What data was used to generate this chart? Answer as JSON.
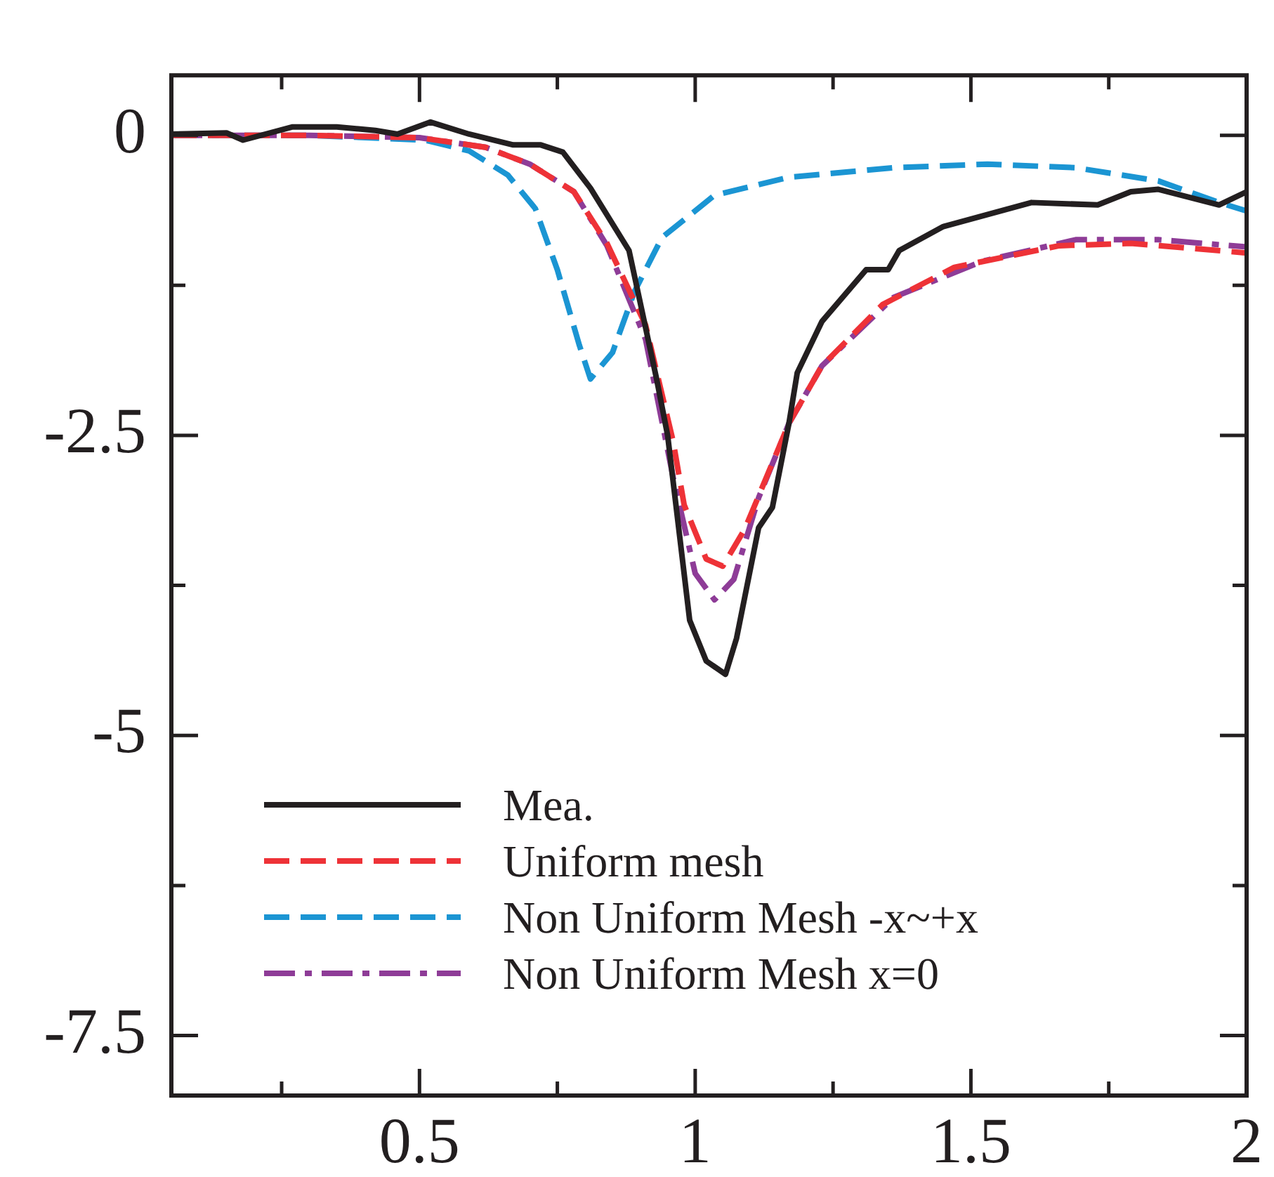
{
  "chart_data": {
    "type": "line",
    "xlim": [
      0.05,
      2
    ],
    "ylim": [
      -8,
      0.5
    ],
    "xticks": [
      {
        "value": 0.25,
        "label": null
      },
      0.5,
      {
        "value": 0.75,
        "label": null
      },
      1,
      {
        "value": 1.25,
        "label": null
      },
      1.5,
      {
        "value": 1.75,
        "label": null
      },
      2
    ],
    "yticks": [
      0,
      {
        "value": -1.25,
        "label": null
      },
      -2.5,
      {
        "value": -3.75,
        "label": null
      },
      -5,
      {
        "value": -6.25,
        "label": null
      },
      -7.5
    ],
    "grid": false,
    "legend": "bottom left",
    "marker": "none",
    "series": [
      {
        "name": "Mea.",
        "color": "#231f20",
        "line_style": "solid",
        "x": [
          0.05,
          0.15,
          0.18,
          0.27,
          0.35,
          0.42,
          0.46,
          0.52,
          0.59,
          0.67,
          0.72,
          0.76,
          0.81,
          0.88,
          0.93,
          0.95,
          0.99,
          1.02,
          1.055,
          1.075,
          1.115,
          1.14,
          1.17,
          1.185,
          1.23,
          1.31,
          1.35,
          1.37,
          1.45,
          1.61,
          1.73,
          1.79,
          1.84,
          1.95,
          2.0
        ],
        "values": [
          0.01,
          0.02,
          -0.04,
          0.07,
          0.07,
          0.04,
          0.01,
          0.11,
          0.01,
          -0.08,
          -0.08,
          -0.14,
          -0.44,
          -0.96,
          -2.03,
          -2.5,
          -4.04,
          -4.38,
          -4.49,
          -4.19,
          -3.27,
          -3.1,
          -2.4,
          -1.98,
          -1.55,
          -1.12,
          -1.12,
          -0.96,
          -0.76,
          -0.56,
          -0.58,
          -0.47,
          -0.45,
          -0.58,
          -0.47
        ]
      },
      {
        "name": "Uniform mesh",
        "color": "#ee3237",
        "line_style": "dashed",
        "x": [
          0.05,
          0.3,
          0.5,
          0.62,
          0.7,
          0.78,
          0.84,
          0.91,
          0.96,
          0.98,
          1.02,
          1.05,
          1.09,
          1.17,
          1.23,
          1.34,
          1.47,
          1.66,
          1.79,
          2.0
        ],
        "values": [
          0,
          0,
          -0.02,
          -0.1,
          -0.24,
          -0.47,
          -0.9,
          -1.58,
          -2.55,
          -3.08,
          -3.53,
          -3.59,
          -3.28,
          -2.4,
          -1.92,
          -1.41,
          -1.1,
          -0.92,
          -0.9,
          -0.98
        ]
      },
      {
        "name": "Non Uniform Mesh -x~+x",
        "color": "#1b95d3",
        "line_style": "dashed",
        "x": [
          0.05,
          0.3,
          0.51,
          0.59,
          0.66,
          0.71,
          0.75,
          0.79,
          0.81,
          0.85,
          0.89,
          0.94,
          1.035,
          1.17,
          1.36,
          1.53,
          1.69,
          1.84,
          1.95,
          2.0
        ],
        "values": [
          0,
          0,
          -0.04,
          -0.13,
          -0.33,
          -0.61,
          -1.12,
          -1.75,
          -2.03,
          -1.81,
          -1.3,
          -0.85,
          -0.5,
          -0.35,
          -0.27,
          -0.24,
          -0.27,
          -0.38,
          -0.56,
          -0.63
        ]
      },
      {
        "name": "Non Uniform Mesh x=0",
        "color": "#8e3c97",
        "line_style": "dashdot",
        "x": [
          0.05,
          0.3,
          0.5,
          0.62,
          0.7,
          0.78,
          0.84,
          0.91,
          0.96,
          1.0,
          1.035,
          1.07,
          1.115,
          1.17,
          1.23,
          1.36,
          1.52,
          1.69,
          1.84,
          2.0
        ],
        "values": [
          0,
          0,
          -0.02,
          -0.1,
          -0.24,
          -0.47,
          -0.92,
          -1.7,
          -2.85,
          -3.65,
          -3.87,
          -3.7,
          -3.02,
          -2.4,
          -1.92,
          -1.35,
          -1.05,
          -0.87,
          -0.87,
          -0.93
        ]
      }
    ]
  }
}
